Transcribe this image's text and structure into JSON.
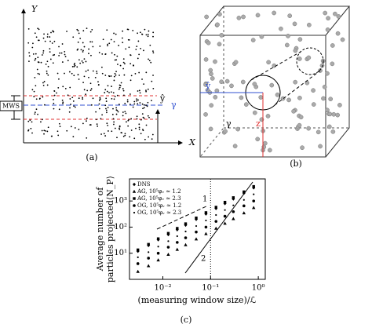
{
  "panels": {
    "a": {
      "y_axis": "Y",
      "x_axis": "X",
      "window": "MWS",
      "direction": "ŷ",
      "line": "γ",
      "label": "(a)"
    },
    "b": {
      "direction": "ŷ",
      "line": "γ",
      "depth": "z",
      "label": "(b)"
    },
    "c": {
      "label": "(c)"
    }
  },
  "chart_data": {
    "type": "scatter",
    "xlabel": "(measuring window size)/ℒ",
    "ylabel": [
      "Average number of",
      "particles projected⟨N_P⟩"
    ],
    "log_x": true,
    "log_y": true,
    "xlim": [
      0.002,
      1.4
    ],
    "ylim": [
      1,
      7000
    ],
    "xticks": [
      {
        "value": 0.01,
        "label": "10⁻²"
      },
      {
        "value": 0.1,
        "label": "10⁻¹"
      },
      {
        "value": 1,
        "label": "10⁰"
      }
    ],
    "yticks": [
      {
        "value": 10,
        "label": "10¹"
      },
      {
        "value": 100,
        "label": "10²"
      },
      {
        "value": 1000,
        "label": "10³"
      }
    ],
    "vline": 0.1,
    "legend": "upper left",
    "annotations": [
      "1",
      "2"
    ],
    "x": [
      0.003,
      0.005,
      0.008,
      0.013,
      0.02,
      0.03,
      0.05,
      0.08,
      0.13,
      0.2,
      0.3,
      0.5,
      0.8
    ],
    "series": [
      {
        "name": "DNS",
        "marker": "diamond",
        "color": "#000",
        "values": [
          12,
          20,
          33,
          52,
          80,
          120,
          200,
          320,
          520,
          800,
          1200,
          2000,
          3200
        ]
      },
      {
        "name": "AG, 10⁵φᵥ ≈ 1.2",
        "marker": "triangle",
        "color": "#000",
        "values": [
          2,
          3.3,
          5.5,
          9,
          14,
          21,
          35,
          56,
          90,
          140,
          210,
          350,
          560
        ]
      },
      {
        "name": "AG, 10⁵φᵥ ≈ 2.3",
        "marker": "square",
        "color": "#000",
        "values": [
          13.5,
          22,
          36,
          58,
          90,
          135,
          225,
          360,
          580,
          900,
          1350,
          2250,
          3600
        ]
      },
      {
        "name": "OG, 10⁵φᵥ ≈ 1.2",
        "marker": "circle",
        "color": "#000",
        "values": [
          4,
          6.5,
          10,
          17,
          26,
          39,
          65,
          100,
          165,
          260,
          390,
          650,
          1000
        ]
      },
      {
        "name": "OG, 10⁵φᵥ ≈ 2.3",
        "marker": "dot",
        "color": "#000",
        "values": [
          7,
          11,
          18,
          29,
          45,
          68,
          110,
          180,
          290,
          450,
          680,
          1100,
          1800
        ]
      }
    ]
  }
}
